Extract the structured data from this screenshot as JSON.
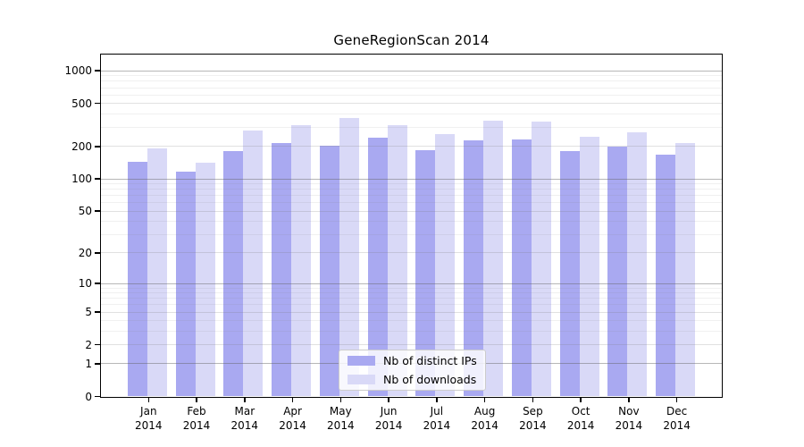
{
  "page": {
    "background": "#ffffff"
  },
  "chart_data": {
    "type": "bar",
    "title": "GeneRegionScan 2014",
    "categories": [
      "Jan 2014",
      "Feb 2014",
      "Mar 2014",
      "Apr 2014",
      "May 2014",
      "Jun 2014",
      "Jul 2014",
      "Aug 2014",
      "Sep 2014",
      "Oct 2014",
      "Nov 2014",
      "Dec 2014"
    ],
    "series": [
      {
        "name": "Nb of distinct IPs",
        "color": "#a9a9f1",
        "values": [
          142,
          115,
          180,
          212,
          203,
          239,
          182,
          224,
          229,
          180,
          197,
          166
        ]
      },
      {
        "name": "Nb of downloads",
        "color": "#d9d9f7",
        "values": [
          190,
          140,
          281,
          312,
          366,
          315,
          260,
          345,
          334,
          244,
          266,
          212
        ]
      }
    ],
    "yscale": "log10(value+1)",
    "yticks": [
      0,
      1,
      2,
      5,
      10,
      20,
      50,
      100,
      200,
      500,
      1000
    ],
    "ylim": [
      0,
      1400
    ],
    "grid": true,
    "legend": {
      "position": "bottom-center-inside",
      "entries": [
        "Nb of distinct IPs",
        "Nb of downloads"
      ]
    }
  }
}
